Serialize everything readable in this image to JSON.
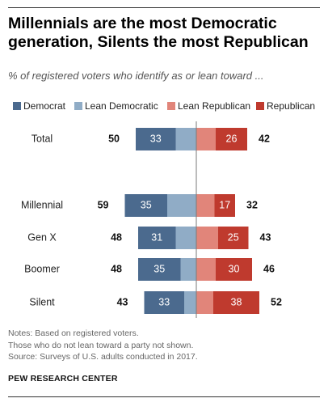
{
  "title_line1": "Millennials are the most Democratic",
  "title_line2": "generation, Silents the most Republican",
  "subtitle": "% of registered voters who identify as or lean toward ...",
  "legend": {
    "democrat": "Democrat",
    "lean_democratic": "Lean Democratic",
    "lean_republican": "Lean Republican",
    "republican": "Republican"
  },
  "colors": {
    "democrat": "#4b6a8e",
    "lean_democratic": "#90acc6",
    "lean_republican": "#e1857a",
    "republican": "#bf3a2e",
    "center_line": "#7a7a7a"
  },
  "notes": {
    "line1": "Notes: Based on registered voters.",
    "line2": "Those who do not lean toward a party not shown.",
    "line3": "Source: Surveys of U.S. adults conducted in 2017."
  },
  "source_org": "PEW RESEARCH CENTER",
  "chart_data": {
    "type": "bar",
    "orientation": "horizontal-diverging",
    "categories": [
      "Total",
      "Millennial",
      "Gen X",
      "Boomer",
      "Silent"
    ],
    "series": [
      {
        "name": "Democrat",
        "values": [
          33,
          35,
          31,
          35,
          33
        ]
      },
      {
        "name": "Lean Democratic",
        "values": [
          17,
          24,
          17,
          13,
          10
        ]
      },
      {
        "name": "Lean Republican",
        "values": [
          16,
          15,
          18,
          16,
          14
        ]
      },
      {
        "name": "Republican",
        "values": [
          26,
          17,
          25,
          30,
          38
        ]
      }
    ],
    "dem_totals": [
      50,
      59,
      48,
      48,
      43
    ],
    "rep_totals": [
      42,
      32,
      43,
      46,
      52
    ],
    "legend_position": "top",
    "grid": false
  }
}
